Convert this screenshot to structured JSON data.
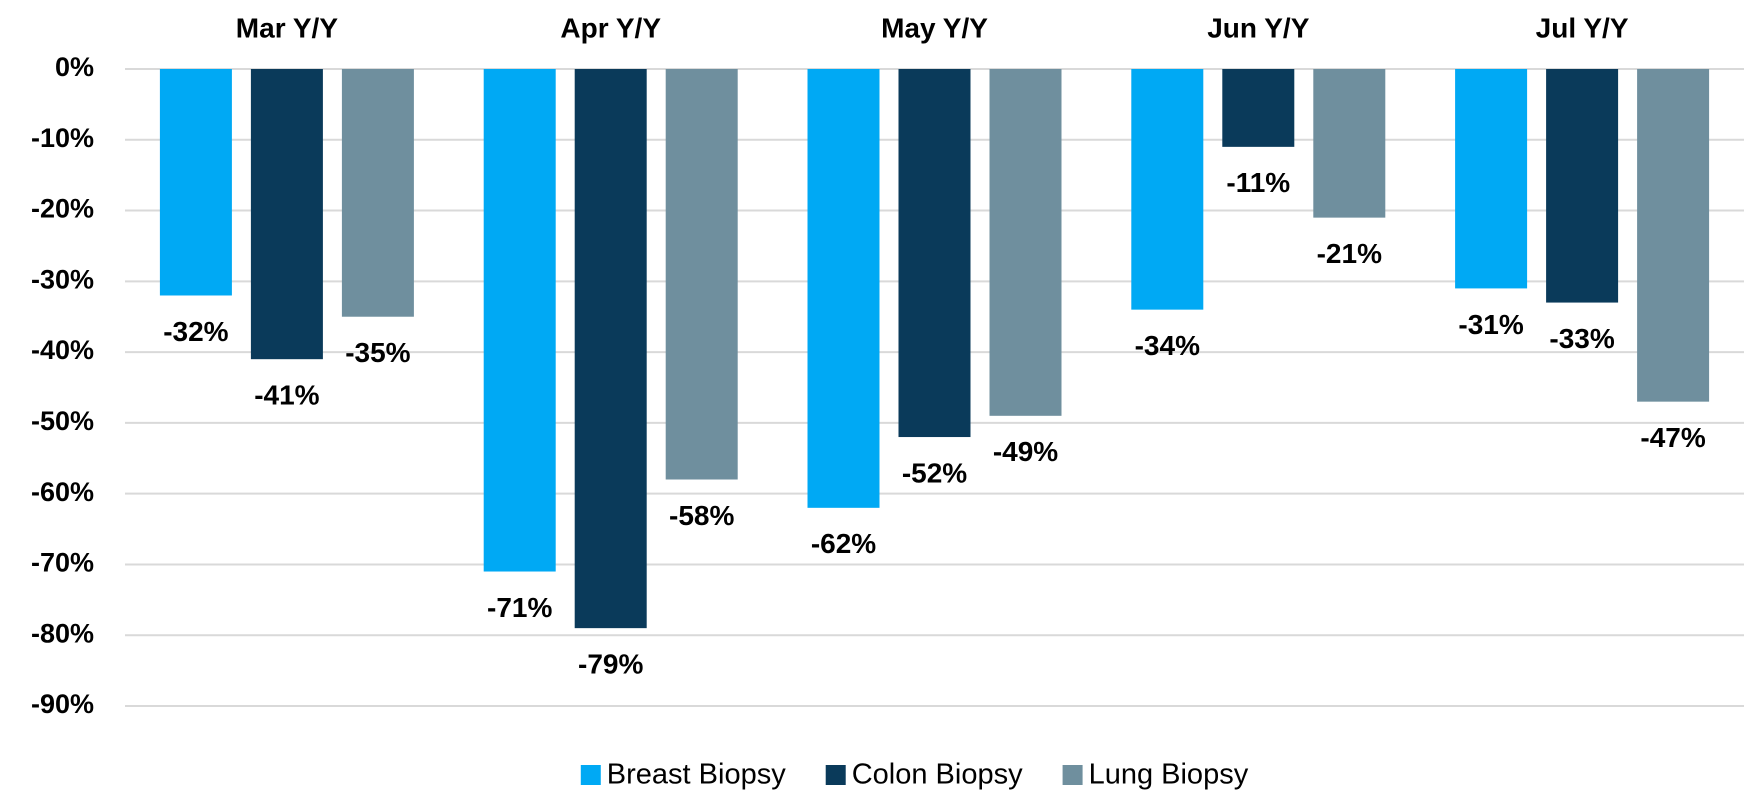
{
  "chart_data": {
    "type": "bar",
    "categories": [
      "Mar Y/Y",
      "Apr Y/Y",
      "May Y/Y",
      "Jun Y/Y",
      "Jul Y/Y"
    ],
    "series": [
      {
        "name": "Breast Biopsy",
        "color": "#00a9f4",
        "values": [
          -32,
          -71,
          -62,
          -34,
          -31
        ],
        "value_labels": [
          "-32%",
          "-71%",
          "-62%",
          "-34%",
          "-31%"
        ]
      },
      {
        "name": "Colon Biopsy",
        "color": "#0a3a5a",
        "values": [
          -41,
          -79,
          -52,
          -11,
          -33
        ],
        "value_labels": [
          "-41%",
          "-79%",
          "-52%",
          "-11%",
          "-33%"
        ]
      },
      {
        "name": "Lung Biopsy",
        "color": "#6f8f9e",
        "values": [
          -35,
          -58,
          -49,
          -21,
          -47
        ],
        "value_labels": [
          "-35%",
          "-58%",
          "-49%",
          "-21%",
          "-47%"
        ]
      }
    ],
    "ylim": [
      -90,
      0
    ],
    "yticks": [
      {
        "value": 0,
        "label": "0%"
      },
      {
        "value": -10,
        "label": "-10%"
      },
      {
        "value": -20,
        "label": "-20%"
      },
      {
        "value": -30,
        "label": "-30%"
      },
      {
        "value": -40,
        "label": "-40%"
      },
      {
        "value": -50,
        "label": "-50%"
      },
      {
        "value": -60,
        "label": "-60%"
      },
      {
        "value": -70,
        "label": "-70%"
      },
      {
        "value": -80,
        "label": "-80%"
      },
      {
        "value": -90,
        "label": "-90%"
      }
    ],
    "grid": true,
    "legend": "bottom"
  }
}
